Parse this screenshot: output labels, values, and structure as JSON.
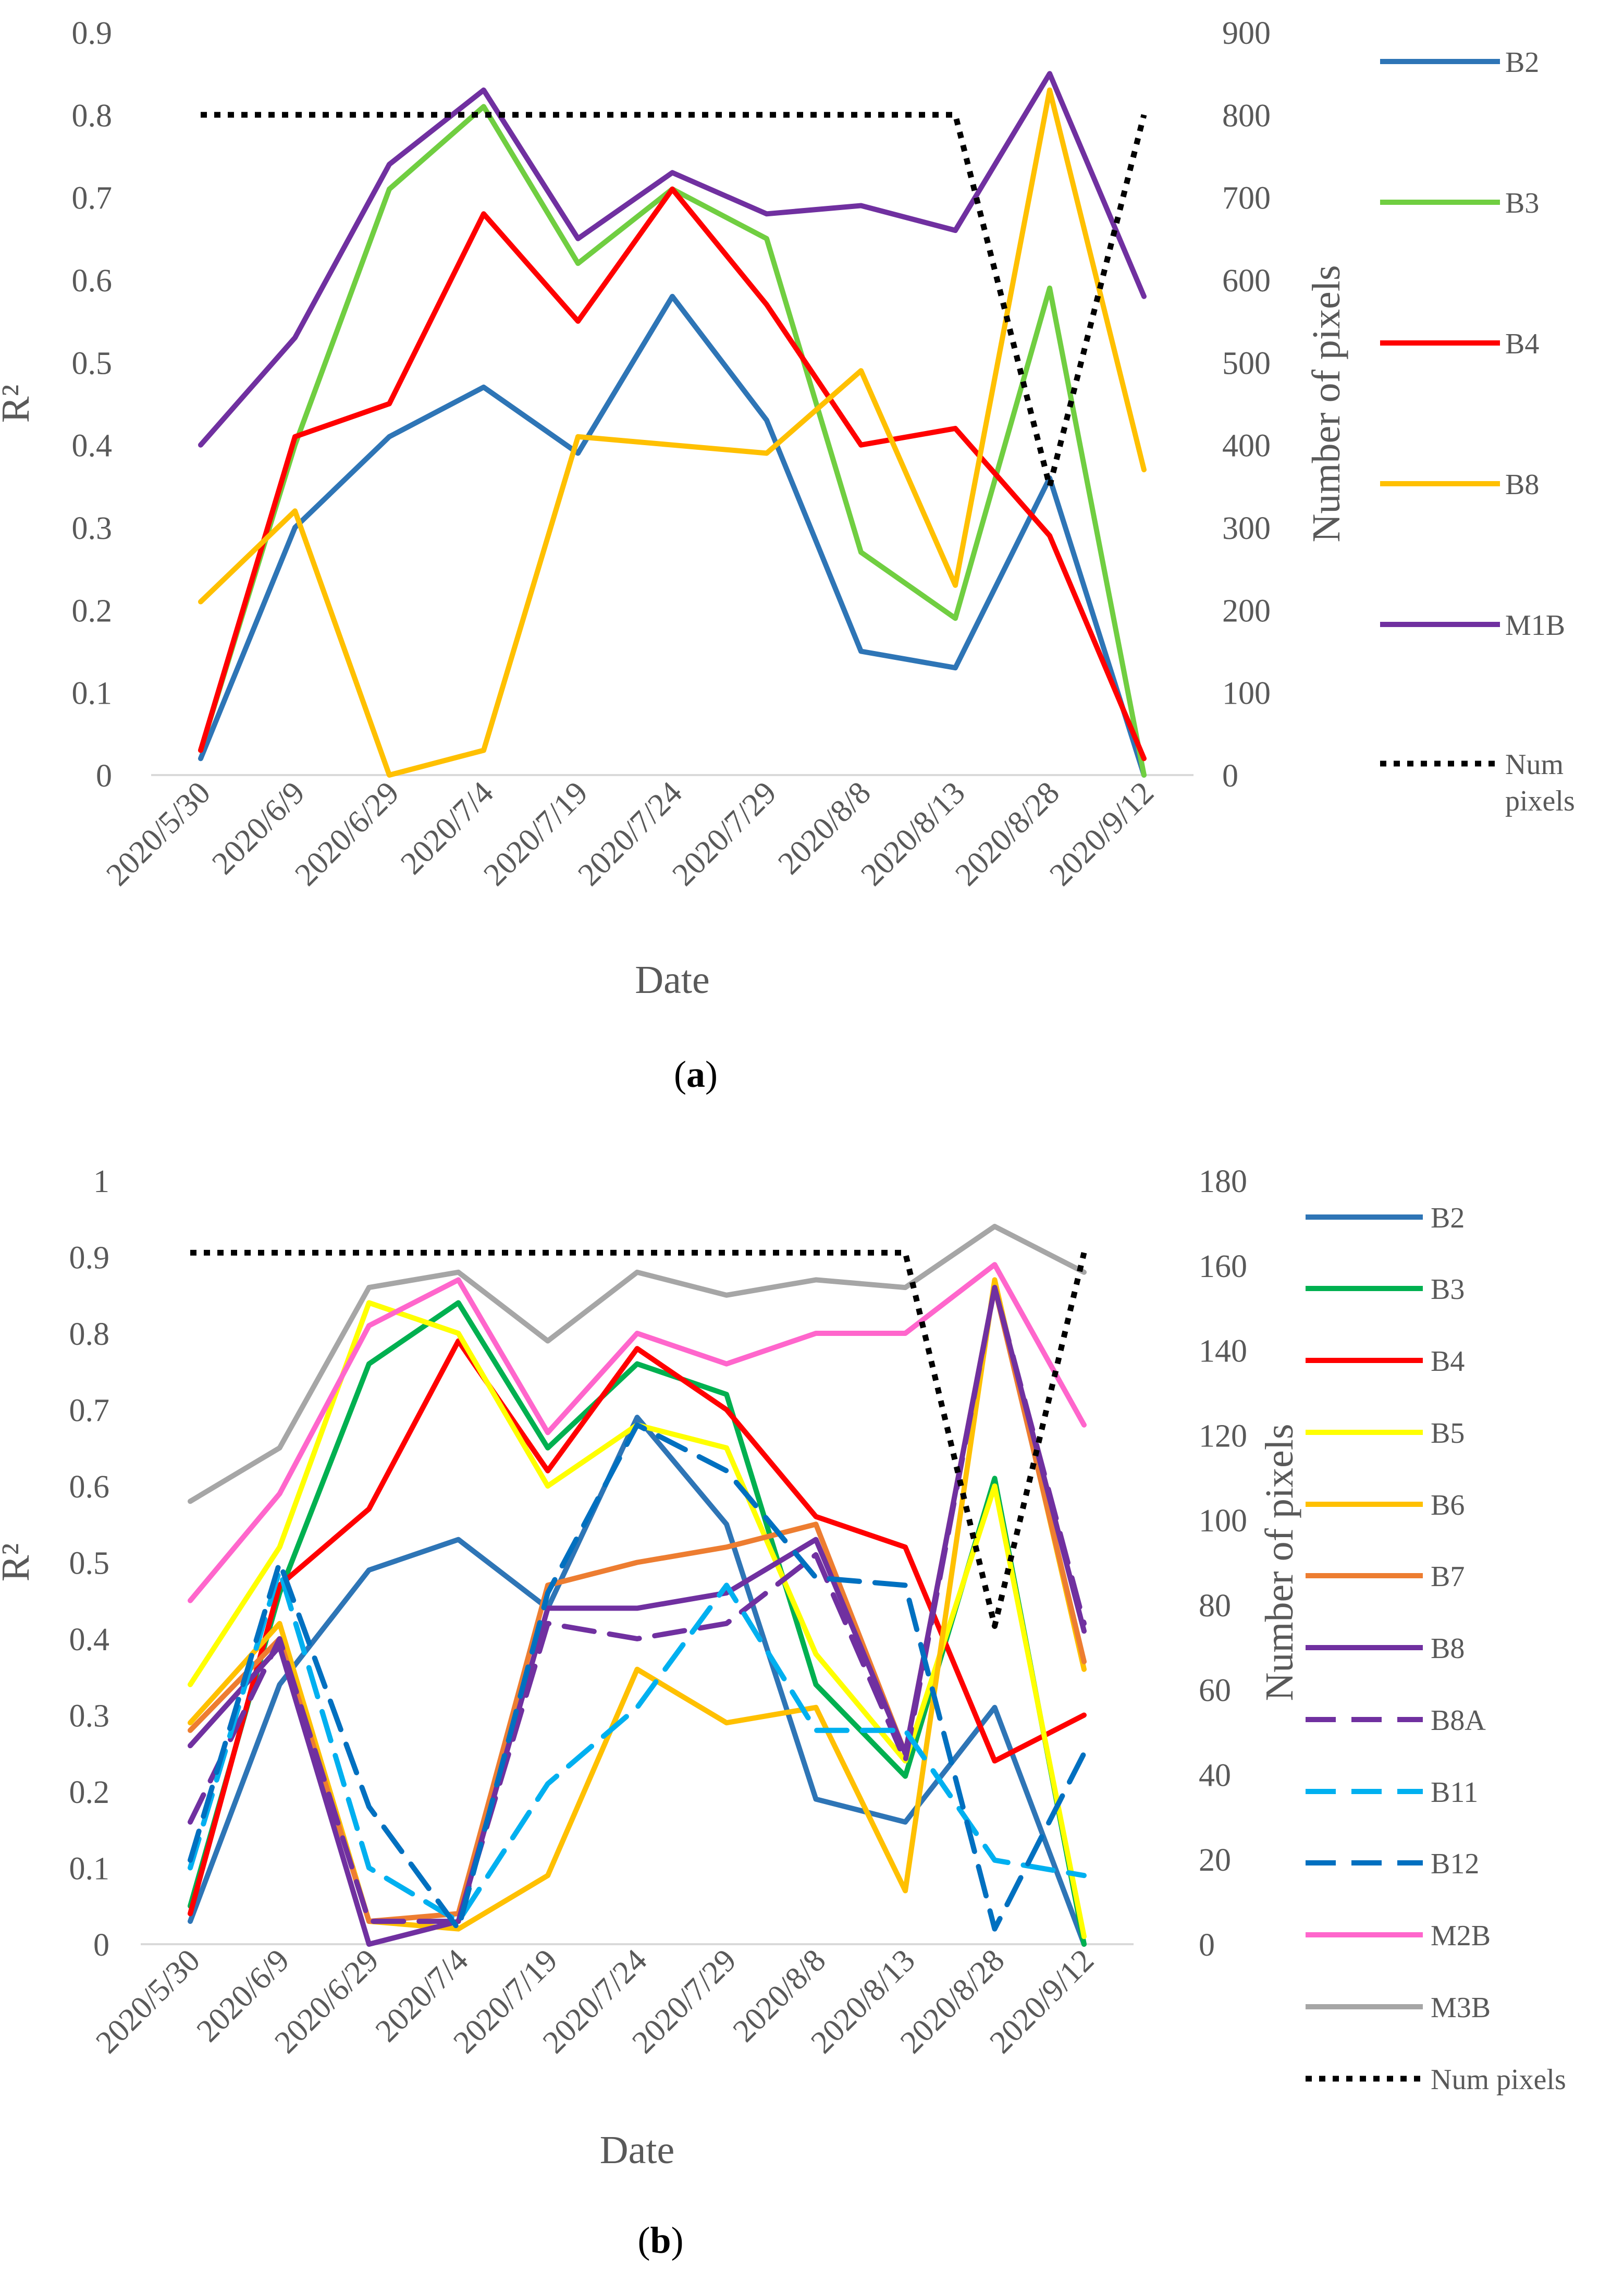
{
  "chart_data": [
    {
      "id": "a",
      "type": "line",
      "caption_letter": "a",
      "xlabel": "Date",
      "ylabel": "R²",
      "ylabel_right": "Number of pixels",
      "ylim": [
        0,
        0.9
      ],
      "y_ticks": [
        "0",
        "0.1",
        "0.2",
        "0.3",
        "0.4",
        "0.5",
        "0.6",
        "0.7",
        "0.8",
        "0.9"
      ],
      "ylim_right": [
        0,
        900
      ],
      "y_ticks_right": [
        "0",
        "100",
        "200",
        "300",
        "400",
        "500",
        "600",
        "700",
        "800",
        "900"
      ],
      "categories": [
        "2020/5/30",
        "2020/6/9",
        "2020/6/29",
        "2020/7/4",
        "2020/7/19",
        "2020/7/24",
        "2020/7/29",
        "2020/8/8",
        "2020/8/13",
        "2020/8/28",
        "2020/9/12"
      ],
      "series": [
        {
          "name": "B2",
          "color": "#2e75b6",
          "dash": "solid",
          "axis": "left",
          "values": [
            0.02,
            0.3,
            0.41,
            0.47,
            0.39,
            0.58,
            0.43,
            0.15,
            0.13,
            0.36,
            0.0
          ]
        },
        {
          "name": "B3",
          "color": "#70ce41",
          "dash": "solid",
          "axis": "left",
          "values": [
            0.03,
            0.4,
            0.71,
            0.81,
            0.62,
            0.71,
            0.65,
            0.27,
            0.19,
            0.59,
            0.0
          ]
        },
        {
          "name": "B4",
          "color": "#ff0000",
          "dash": "solid",
          "axis": "left",
          "values": [
            0.03,
            0.41,
            0.45,
            0.68,
            0.55,
            0.71,
            0.57,
            0.4,
            0.42,
            0.29,
            0.02
          ]
        },
        {
          "name": "B8",
          "color": "#ffc000",
          "dash": "solid",
          "axis": "left",
          "values": [
            0.21,
            0.32,
            0.0,
            0.03,
            0.41,
            0.4,
            0.39,
            0.49,
            0.23,
            0.83,
            0.37
          ]
        },
        {
          "name": "M1B",
          "color": "#7030a0",
          "dash": "solid",
          "axis": "left",
          "values": [
            0.4,
            0.53,
            0.74,
            0.83,
            0.65,
            0.73,
            0.68,
            0.69,
            0.66,
            0.85,
            0.58
          ]
        },
        {
          "name": "Num pixels",
          "legend_lines": [
            "Num",
            "pixels"
          ],
          "color": "#000000",
          "dash": "dotted",
          "axis": "right",
          "values": [
            800,
            800,
            800,
            800,
            800,
            800,
            800,
            800,
            800,
            350,
            800
          ]
        }
      ]
    },
    {
      "id": "b",
      "type": "line",
      "caption_letter": "b",
      "xlabel": "Date",
      "ylabel": "R²",
      "ylabel_right": "Number of pixels",
      "ylim": [
        0,
        1
      ],
      "y_ticks": [
        "0",
        "0.1",
        "0.2",
        "0.3",
        "0.4",
        "0.5",
        "0.6",
        "0.7",
        "0.8",
        "0.9",
        "1"
      ],
      "ylim_right": [
        0,
        180
      ],
      "y_ticks_right": [
        "0",
        "20",
        "40",
        "60",
        "80",
        "100",
        "120",
        "140",
        "160",
        "180"
      ],
      "categories": [
        "2020/5/30",
        "2020/6/9",
        "2020/6/29",
        "2020/7/4",
        "2020/7/19",
        "2020/7/24",
        "2020/7/29",
        "2020/8/8",
        "2020/8/13",
        "2020/8/28",
        "2020/9/12"
      ],
      "series": [
        {
          "name": "B2",
          "color": "#2e75b6",
          "dash": "solid",
          "axis": "left",
          "values": [
            0.03,
            0.34,
            0.49,
            0.53,
            0.44,
            0.69,
            0.55,
            0.19,
            0.16,
            0.31,
            0.0
          ]
        },
        {
          "name": "B3",
          "color": "#00b050",
          "dash": "solid",
          "axis": "left",
          "values": [
            0.05,
            0.46,
            0.76,
            0.84,
            0.65,
            0.76,
            0.72,
            0.34,
            0.22,
            0.61,
            0.0
          ]
        },
        {
          "name": "B4",
          "color": "#ff0000",
          "dash": "solid",
          "axis": "left",
          "values": [
            0.04,
            0.47,
            0.57,
            0.79,
            0.62,
            0.78,
            0.7,
            0.56,
            0.52,
            0.24,
            0.3
          ]
        },
        {
          "name": "B5",
          "color": "#ffff00",
          "dash": "solid",
          "axis": "left",
          "values": [
            0.34,
            0.52,
            0.84,
            0.8,
            0.6,
            0.68,
            0.65,
            0.38,
            0.24,
            0.6,
            0.01
          ]
        },
        {
          "name": "B6",
          "color": "#ffc000",
          "dash": "solid",
          "axis": "left",
          "values": [
            0.29,
            0.42,
            0.03,
            0.02,
            0.09,
            0.36,
            0.29,
            0.31,
            0.07,
            0.87,
            0.36
          ]
        },
        {
          "name": "B7",
          "color": "#ed7d31",
          "dash": "solid",
          "axis": "left",
          "values": [
            0.28,
            0.4,
            0.03,
            0.04,
            0.47,
            0.5,
            0.52,
            0.55,
            0.25,
            0.86,
            0.37
          ]
        },
        {
          "name": "B8",
          "color": "#7030a0",
          "dash": "solid",
          "axis": "left",
          "values": [
            0.26,
            0.39,
            0.0,
            0.03,
            0.44,
            0.44,
            0.46,
            0.53,
            0.25,
            0.86,
            0.41
          ]
        },
        {
          "name": "B8A",
          "color": "#7030a0",
          "dash": "dashed",
          "axis": "left",
          "values": [
            0.16,
            0.4,
            0.03,
            0.03,
            0.42,
            0.4,
            0.42,
            0.51,
            0.24,
            0.86,
            0.42
          ]
        },
        {
          "name": "B11",
          "color": "#00b0f0",
          "dash": "dashed",
          "axis": "left",
          "values": [
            0.1,
            0.49,
            0.1,
            0.03,
            0.21,
            0.31,
            0.47,
            0.28,
            0.28,
            0.11,
            0.09
          ]
        },
        {
          "name": "B12",
          "color": "#0070c0",
          "dash": "dashed",
          "axis": "left",
          "values": [
            0.11,
            0.5,
            0.18,
            0.02,
            0.46,
            0.68,
            0.62,
            0.48,
            0.47,
            0.02,
            0.25
          ]
        },
        {
          "name": "M2B",
          "color": "#ff66cc",
          "dash": "solid",
          "axis": "left",
          "values": [
            0.45,
            0.59,
            0.81,
            0.87,
            0.67,
            0.8,
            0.76,
            0.8,
            0.8,
            0.89,
            0.68
          ]
        },
        {
          "name": "M3B",
          "color": "#a6a6a6",
          "dash": "solid",
          "axis": "left",
          "values": [
            0.58,
            0.65,
            0.86,
            0.88,
            0.79,
            0.88,
            0.85,
            0.87,
            0.86,
            0.94,
            0.88
          ]
        },
        {
          "name": "Num pixels",
          "legend_lines": [
            "Num pixels"
          ],
          "color": "#000000",
          "dash": "dotted",
          "axis": "right",
          "values": [
            163,
            163,
            163,
            163,
            163,
            163,
            163,
            163,
            163,
            75,
            163
          ]
        }
      ]
    }
  ]
}
